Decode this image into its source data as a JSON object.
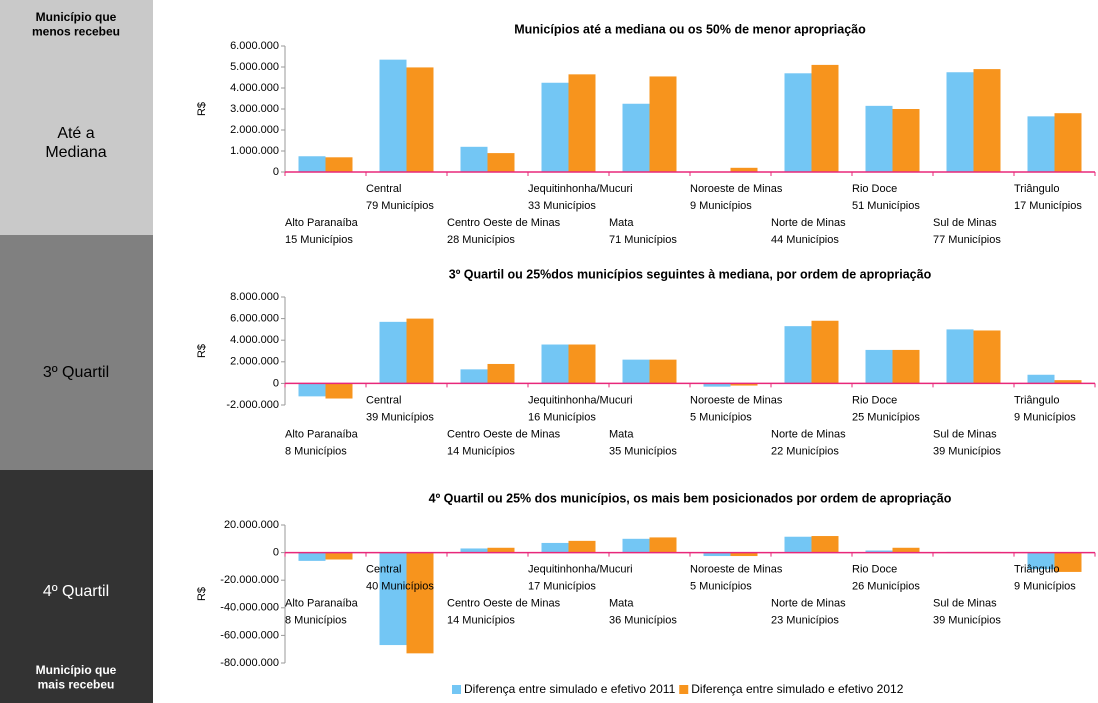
{
  "sidebar": {
    "top_note": "Município que menos recebeu",
    "sections": [
      "Até a Mediana",
      "3º Quartil",
      "4º Quartil"
    ],
    "bottom_note": "Município que mais recebeu"
  },
  "legend": [
    {
      "name": "Diferença entre simulado e efetivo 2011",
      "color": "#73c6f4"
    },
    {
      "name": "Diferença entre simulado e efetivo 2012",
      "color": "#f7941d"
    }
  ],
  "chart_data": [
    {
      "type": "bar",
      "title": "Municípios até a mediana ou os 50% de menor apropriação",
      "ylabel": "R$",
      "categories": [
        "Alto Paranaíba",
        "Central",
        "Centro Oeste de Minas",
        "Jequitinhonha/Mucuri",
        "Mata",
        "Noroeste de Minas",
        "Norte de Minas",
        "Rio Doce",
        "Sul de Minas",
        "Triângulo"
      ],
      "category_counts": [
        "15 Municípios",
        "79 Municípios",
        "28 Municípios",
        "33 Municípios",
        "71 Municípios",
        "9 Municípios",
        "44 Municípios",
        "51 Municípios",
        "77 Municípios",
        "17 Municípios"
      ],
      "series": [
        {
          "values": [
            750000,
            5350000,
            1200000,
            4250000,
            3250000,
            0,
            4700000,
            3150000,
            4750000,
            2650000
          ]
        },
        {
          "values": [
            700000,
            4980000,
            900000,
            4650000,
            4550000,
            200000,
            5100000,
            3000000,
            4900000,
            2800000
          ]
        }
      ],
      "ylim": [
        0,
        6000000
      ],
      "yticks": [
        0,
        {
          "value": 1000000,
          "label": "1.000.000"
        },
        {
          "value": 2000000,
          "label": "2.000.000"
        },
        {
          "value": 3000000,
          "label": "3.000.000"
        },
        {
          "value": 4000000,
          "label": "4.000.000"
        },
        {
          "value": 5000000,
          "label": "5.000.000"
        },
        {
          "value": 6000000,
          "label": "6.000.000"
        }
      ]
    },
    {
      "type": "bar",
      "title": "3º Quartil ou 25%dos municípios seguintes à mediana, por ordem de apropriação",
      "ylabel": "R$",
      "categories": [
        "Alto Paranaíba",
        "Central",
        "Centro Oeste de Minas",
        "Jequitinhonha/Mucuri",
        "Mata",
        "Noroeste de Minas",
        "Norte de Minas",
        "Rio Doce",
        "Sul de Minas",
        "Triângulo"
      ],
      "category_counts": [
        "8 Municípios",
        "39 Municípios",
        "14 Municípios",
        "16 Municípios",
        "35 Municípios",
        "5 Municípios",
        "22 Municípios",
        "25 Municípios",
        "39 Municípios",
        "9 Municípios"
      ],
      "series": [
        {
          "values": [
            -1200000,
            5700000,
            1300000,
            3600000,
            2200000,
            -300000,
            5300000,
            3100000,
            5000000,
            800000
          ]
        },
        {
          "values": [
            -1400000,
            6000000,
            1800000,
            3600000,
            2200000,
            -200000,
            5800000,
            3100000,
            4900000,
            300000
          ]
        }
      ],
      "ylim": [
        -2000000,
        8000000
      ],
      "yticks": [
        {
          "value": -2000000,
          "label": "-2.000.000"
        },
        0,
        {
          "value": 2000000,
          "label": "2.000.000"
        },
        {
          "value": 4000000,
          "label": "4.000.000"
        },
        {
          "value": 6000000,
          "label": "6.000.000"
        },
        {
          "value": 8000000,
          "label": "8.000.000"
        }
      ]
    },
    {
      "type": "bar",
      "title": "4º Quartil ou 25% dos municípios, os mais bem posicionados por ordem de apropriação",
      "ylabel": "R$",
      "categories": [
        "Alto Paranaíba",
        "Central",
        "Centro Oeste de Minas",
        "Jequitinhonha/Mucuri",
        "Mata",
        "Noroeste de Minas",
        "Norte de Minas",
        "Rio Doce",
        "Sul de Minas",
        "Triângulo"
      ],
      "category_counts": [
        "8 Municípios",
        "40 Municípios",
        "14 Municípios",
        "17 Municípios",
        "36 Municípios",
        "5 Municípios",
        "23 Municípios",
        "26 Municípios",
        "39 Municípios",
        "9 Municípios"
      ],
      "series": [
        {
          "values": [
            -6000000,
            -67000000,
            3000000,
            7000000,
            10000000,
            -2500000,
            11500000,
            1500000,
            500000,
            -12000000
          ]
        },
        {
          "values": [
            -5000000,
            -73000000,
            3500000,
            8500000,
            11000000,
            -2500000,
            12000000,
            3500000,
            500000,
            -14000000
          ]
        }
      ],
      "ylim": [
        -80000000,
        20000000
      ],
      "yticks": [
        {
          "value": -80000000,
          "label": "-80.000.000"
        },
        {
          "value": -60000000,
          "label": "-60.000.000"
        },
        {
          "value": -40000000,
          "label": "-40.000.000"
        },
        {
          "value": -20000000,
          "label": "-20.000.000"
        },
        0,
        {
          "value": 20000000,
          "label": "20.000.000"
        }
      ]
    }
  ]
}
